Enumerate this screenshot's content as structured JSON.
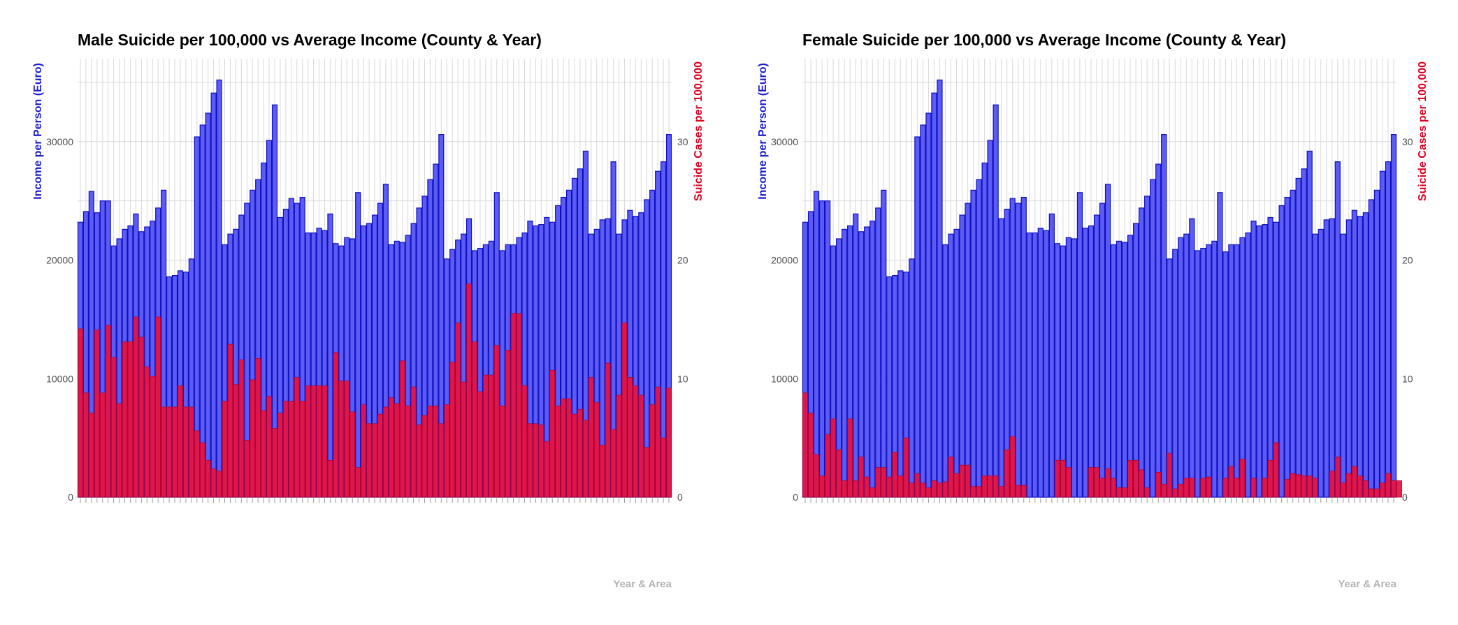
{
  "colors": {
    "income_fill": "#5b5bf5",
    "income_stroke": "#1010c0",
    "suicide_fill": "#e8103e",
    "suicide_stroke": "#b0002a",
    "left_axis_title": "#1a1ad0",
    "right_axis_title": "#e00020",
    "grid": "#d9d9d9",
    "tick_text": "#4d4d4d",
    "xlabel": "#b3b3b3"
  },
  "chart_data": [
    {
      "type": "bar",
      "title": "Male Suicide per 100,000 vs Average Income (County & Year)",
      "xlabel": "Year & Area",
      "ylabel_left": "Income per Person (Euro)",
      "ylabel_right": "Suicide Cases per 100,000",
      "ylim_left": [
        0,
        37000
      ],
      "ylim_right": [
        0,
        37
      ],
      "yticks_left": [
        "0",
        "10000",
        "20000",
        "30000"
      ],
      "yticks_right": [
        "0",
        "10",
        "20",
        "30"
      ],
      "grid": true,
      "series": [
        {
          "axis": "left",
          "values": [
            23200,
            24100,
            25800,
            24000,
            25000,
            25000,
            21200,
            21800,
            22600,
            22900,
            23900,
            22400,
            22800,
            23300,
            24400,
            25900,
            18600,
            18700,
            19100,
            19000,
            20100,
            30400,
            31400,
            32400,
            34100,
            35200,
            21300,
            22200,
            22600,
            23800,
            24800,
            25900,
            26800,
            28200,
            30100,
            33100,
            23600,
            24300,
            25200,
            24800,
            25300,
            22300,
            22300,
            22700,
            22500,
            23900,
            21400,
            21200,
            21900,
            21800,
            25700,
            22900,
            23100,
            23800,
            24800,
            26400,
            21300,
            21600,
            21500,
            22100,
            23100,
            24400,
            25400,
            26800,
            28100,
            30600,
            20100,
            20900,
            21700,
            22200,
            23500,
            20800,
            21000,
            21300,
            21600,
            25700,
            20800,
            21300,
            21300,
            21900,
            22300,
            23300,
            22900,
            23000,
            23600,
            23200,
            24600,
            25300,
            25900,
            26900,
            27700,
            29200,
            22200,
            22600,
            23400,
            23500,
            28300,
            22200,
            23400,
            24200,
            23700,
            24000,
            25100,
            25900,
            27500,
            28300,
            30600
          ]
        },
        {
          "axis": "right",
          "values": [
            14.2,
            8.8,
            7.1,
            14.1,
            8.8,
            14.5,
            11.8,
            7.9,
            13.1,
            13.1,
            15.2,
            13.5,
            11.0,
            10.2,
            15.2,
            7.6,
            7.6,
            7.6,
            9.4,
            7.6,
            7.6,
            5.6,
            4.6,
            3.1,
            2.4,
            2.2,
            8.1,
            12.9,
            9.5,
            11.6,
            4.8,
            9.9,
            11.7,
            7.3,
            8.5,
            5.8,
            7.1,
            8.1,
            8.1,
            10.1,
            8.1,
            9.4,
            9.4,
            9.4,
            9.4,
            3.1,
            12.2,
            9.8,
            9.8,
            7.2,
            2.5,
            7.8,
            6.2,
            6.2,
            7.0,
            7.6,
            8.4,
            7.9,
            11.5,
            7.7,
            9.3,
            6.1,
            6.9,
            7.7,
            7.7,
            6.2,
            7.8,
            11.4,
            14.7,
            9.7,
            18.0,
            13.1,
            8.9,
            10.3,
            10.3,
            12.8,
            7.7,
            12.4,
            15.5,
            15.5,
            9.4,
            6.2,
            6.2,
            6.1,
            4.7,
            10.7,
            7.7,
            8.3,
            8.3,
            7.0,
            7.4,
            6.5,
            10.1,
            8.0,
            4.4,
            11.3,
            5.7,
            8.6,
            14.7,
            10.1,
            9.4,
            8.6,
            4.2,
            7.8,
            9.3,
            5.0,
            9.2
          ]
        }
      ]
    },
    {
      "type": "bar",
      "title": "Female Suicide per 100,000 vs Average Income (County & Year)",
      "xlabel": "Year & Area",
      "ylabel_left": "Income per Person (Euro)",
      "ylabel_right": "Suicide Cases per 100,000",
      "ylim_left": [
        0,
        37000
      ],
      "ylim_right": [
        0,
        37
      ],
      "yticks_left": [
        "0",
        "10000",
        "20000",
        "30000"
      ],
      "yticks_right": [
        "0",
        "10",
        "20",
        "30"
      ],
      "grid": true,
      "series": [
        {
          "axis": "left",
          "values": [
            23200,
            24100,
            25800,
            25000,
            25000,
            21200,
            21800,
            22600,
            22900,
            23900,
            22400,
            22800,
            23300,
            24400,
            25900,
            18600,
            18700,
            19100,
            19000,
            20100,
            30400,
            31400,
            32400,
            34100,
            35200,
            21300,
            22200,
            22600,
            23800,
            24800,
            25900,
            26800,
            28200,
            30100,
            33100,
            23500,
            24300,
            25200,
            24800,
            25300,
            22300,
            22300,
            22700,
            22500,
            23900,
            21400,
            21200,
            21900,
            21800,
            25700,
            22700,
            22900,
            23800,
            24800,
            26400,
            21300,
            21600,
            21500,
            22100,
            23100,
            24400,
            25400,
            26800,
            28100,
            30600,
            20100,
            20900,
            21900,
            22200,
            23500,
            20800,
            21000,
            21300,
            21600,
            25700,
            20700,
            21300,
            21300,
            21900,
            22300,
            23300,
            22900,
            23000,
            23600,
            23200,
            24600,
            25300,
            25900,
            26900,
            27700,
            29200,
            22200,
            22600,
            23400,
            23500,
            28300,
            22200,
            23400,
            24200,
            23700,
            24000,
            25100,
            25900,
            27500,
            28300,
            30600
          ]
        },
        {
          "axis": "right",
          "values": [
            8.8,
            7.1,
            3.6,
            1.8,
            5.3,
            6.6,
            4.0,
            1.4,
            6.6,
            1.4,
            3.4,
            1.7,
            0.8,
            2.5,
            2.5,
            1.7,
            3.8,
            1.8,
            5.0,
            1.2,
            2.0,
            1.2,
            0.8,
            1.4,
            1.2,
            1.3,
            3.4,
            2.0,
            2.7,
            2.7,
            0.9,
            0.9,
            1.8,
            1.8,
            1.8,
            0.9,
            4.0,
            5.1,
            1.0,
            1.0,
            0,
            0,
            0,
            0,
            0,
            3.1,
            3.1,
            2.5,
            0,
            0,
            0,
            2.5,
            2.5,
            1.6,
            2.4,
            1.6,
            0.8,
            0.8,
            3.1,
            3.1,
            2.3,
            0.8,
            0,
            2.1,
            1.1,
            3.7,
            0.7,
            1.1,
            1.6,
            1.6,
            0,
            1.6,
            1.7,
            0,
            0,
            1.6,
            2.6,
            1.6,
            3.2,
            0,
            1.6,
            0,
            1.6,
            3.1,
            4.6,
            0,
            1.5,
            2.0,
            1.9,
            1.8,
            1.8,
            1.6,
            0,
            0,
            2.2,
            3.4,
            1.2,
            2.0,
            2.6,
            1.8,
            1.4,
            0.7,
            0.7,
            1.2,
            2.0,
            1.4,
            1.4
          ]
        }
      ]
    }
  ]
}
